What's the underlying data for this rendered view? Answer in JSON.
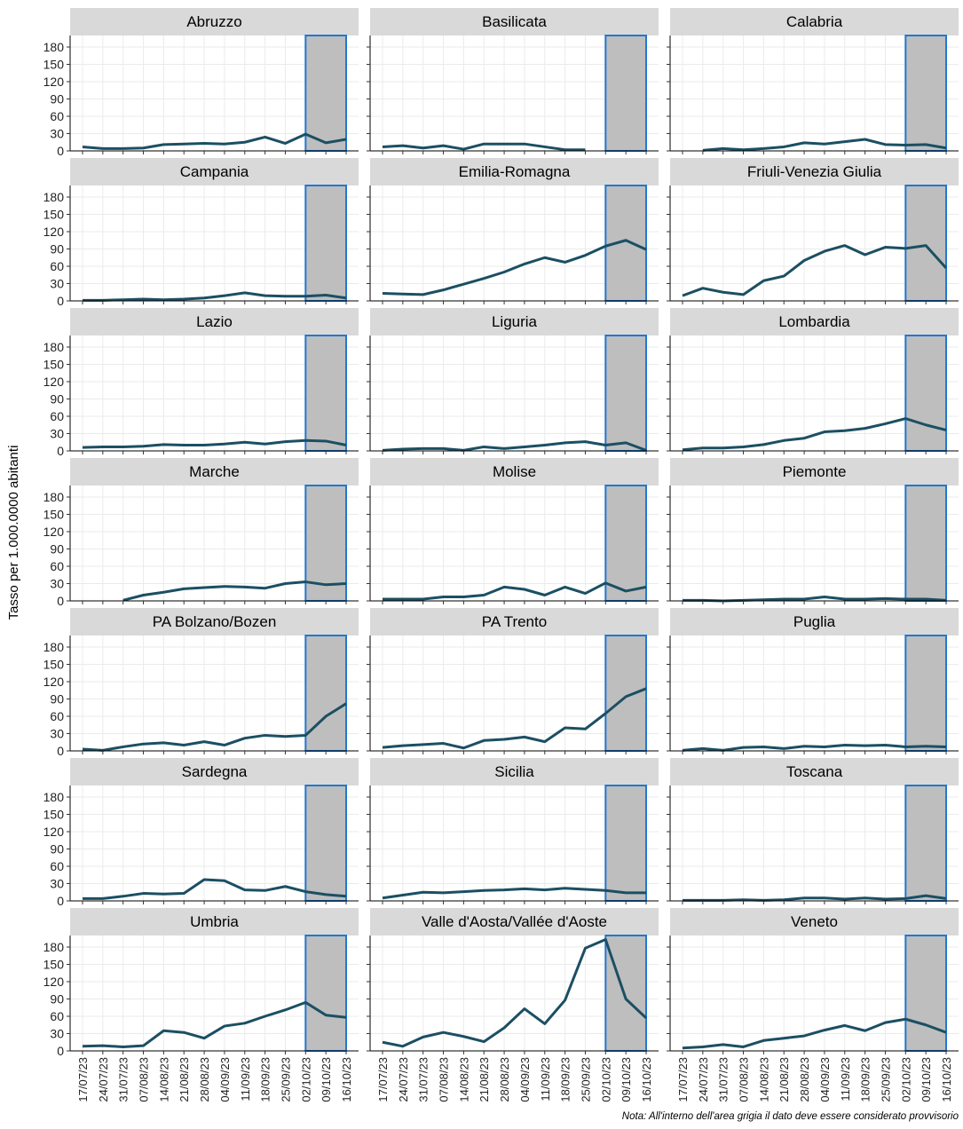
{
  "chart_data": {
    "type": "line",
    "y_label": "Tasso per 1.000.0000 abitanti",
    "note": "Nota: All'interno dell'area grigia il dato deve essere considerato provvisorio",
    "categories": [
      "17/07/23",
      "24/07/23",
      "31/07/23",
      "07/08/23",
      "14/08/23",
      "21/08/23",
      "28/08/23",
      "04/09/23",
      "11/09/23",
      "18/09/23",
      "25/09/23",
      "02/10/23",
      "09/10/23",
      "16/10/23"
    ],
    "ylim": [
      0,
      200
    ],
    "yticks": [
      0,
      30,
      60,
      90,
      120,
      150,
      180
    ],
    "grid": true,
    "color": "#1b4f63",
    "shade": {
      "from": "02/10/23",
      "to": "16/10/23",
      "color": "#bebebe",
      "edge": "#1f78d1"
    },
    "panels": [
      {
        "title": "Abruzzo",
        "values": [
          7,
          4,
          4,
          5,
          11,
          12,
          13,
          12,
          15,
          24,
          13,
          29,
          14,
          20
        ]
      },
      {
        "title": "Basilicata",
        "values": [
          7,
          9,
          5,
          9,
          3,
          12,
          12,
          12,
          7,
          2,
          2,
          null,
          null,
          null
        ]
      },
      {
        "title": "Calabria",
        "values": [
          null,
          1,
          4,
          2,
          4,
          7,
          14,
          12,
          16,
          20,
          11,
          10,
          11,
          5
        ]
      },
      {
        "title": "Campania",
        "values": [
          1,
          1,
          2,
          3,
          2,
          3,
          5,
          9,
          14,
          9,
          8,
          8,
          10,
          5
        ]
      },
      {
        "title": "Emilia-Romagna",
        "values": [
          13,
          12,
          11,
          19,
          29,
          39,
          50,
          64,
          75,
          67,
          79,
          95,
          105,
          89
        ]
      },
      {
        "title": "Friuli-Venezia Giulia",
        "values": [
          9,
          22,
          15,
          11,
          35,
          43,
          70,
          86,
          96,
          80,
          93,
          91,
          96,
          57
        ]
      },
      {
        "title": "Lazio",
        "values": [
          6,
          7,
          7,
          8,
          11,
          10,
          10,
          12,
          15,
          12,
          16,
          18,
          17,
          10
        ]
      },
      {
        "title": "Liguria",
        "values": [
          1,
          3,
          4,
          4,
          1,
          7,
          4,
          7,
          10,
          14,
          16,
          10,
          14,
          1
        ]
      },
      {
        "title": "Lombardia",
        "values": [
          2,
          5,
          5,
          7,
          11,
          18,
          22,
          33,
          35,
          39,
          47,
          56,
          45,
          36
        ]
      },
      {
        "title": "Marche",
        "values": [
          null,
          null,
          1,
          10,
          15,
          21,
          23,
          25,
          24,
          22,
          30,
          33,
          28,
          30
        ]
      },
      {
        "title": "Molise",
        "values": [
          3,
          3,
          3,
          7,
          7,
          10,
          24,
          20,
          10,
          24,
          13,
          31,
          17,
          24
        ]
      },
      {
        "title": "Piemonte",
        "values": [
          1,
          1,
          0,
          1,
          2,
          3,
          3,
          7,
          3,
          3,
          4,
          3,
          3,
          1
        ]
      },
      {
        "title": "PA Bolzano/Bozen",
        "values": [
          3,
          1,
          7,
          12,
          14,
          10,
          16,
          10,
          22,
          27,
          25,
          27,
          60,
          82
        ]
      },
      {
        "title": "PA Trento",
        "values": [
          6,
          9,
          11,
          13,
          5,
          18,
          20,
          24,
          16,
          40,
          38,
          65,
          94,
          108
        ]
      },
      {
        "title": "Puglia",
        "values": [
          1,
          4,
          1,
          6,
          7,
          4,
          8,
          7,
          10,
          9,
          10,
          7,
          8,
          7
        ]
      },
      {
        "title": "Sardegna",
        "values": [
          4,
          4,
          8,
          13,
          12,
          13,
          37,
          35,
          19,
          18,
          25,
          16,
          11,
          8
        ]
      },
      {
        "title": "Sicilia",
        "values": [
          5,
          10,
          15,
          14,
          16,
          18,
          19,
          21,
          19,
          22,
          20,
          18,
          14,
          14
        ]
      },
      {
        "title": "Toscana",
        "values": [
          1,
          1,
          1,
          2,
          1,
          2,
          5,
          5,
          3,
          5,
          3,
          4,
          9,
          4
        ]
      },
      {
        "title": "Umbria",
        "values": [
          8,
          9,
          7,
          9,
          35,
          32,
          22,
          43,
          48,
          60,
          71,
          84,
          62,
          58
        ]
      },
      {
        "title": "Valle d'Aosta/Vallée d'Aoste",
        "values": [
          15,
          8,
          24,
          32,
          25,
          16,
          40,
          73,
          47,
          88,
          178,
          193,
          90,
          57
        ]
      },
      {
        "title": "Veneto",
        "values": [
          5,
          7,
          11,
          7,
          18,
          22,
          26,
          36,
          44,
          35,
          49,
          55,
          45,
          32
        ]
      }
    ]
  }
}
